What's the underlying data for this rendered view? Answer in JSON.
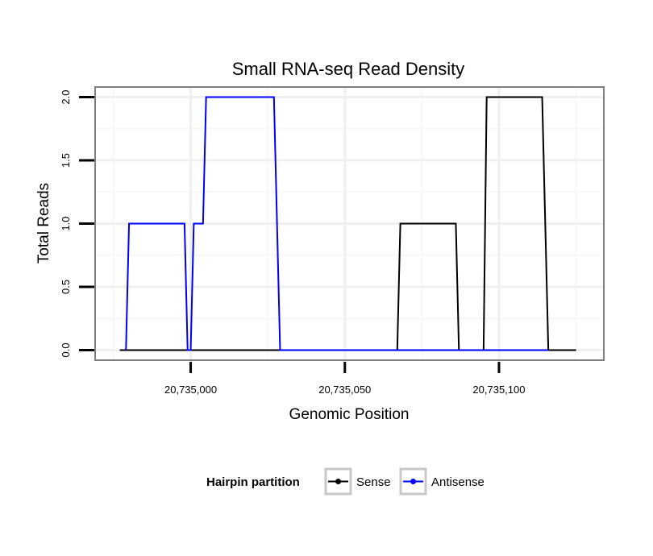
{
  "chart_data": {
    "type": "line",
    "title": "Small RNA-seq Read Density",
    "xlabel": "Genomic Position",
    "ylabel": "Total Reads",
    "xlim": [
      20734969,
      20735134
    ],
    "ylim": [
      -0.08,
      2.08
    ],
    "x_ticks": [
      20735000,
      20735050,
      20735100
    ],
    "x_tick_labels": [
      "20,735,000",
      "20,735,050",
      "20,735,100"
    ],
    "y_ticks": [
      0,
      0.5,
      1,
      1.5,
      2
    ],
    "y_tick_labels": [
      "0.0",
      "0.5",
      "1.0",
      "1.5",
      "2.0"
    ],
    "grid": true,
    "legend": {
      "title": "Hairpin partition",
      "placement": "bottom"
    },
    "series": [
      {
        "name": "Sense",
        "color": "#000000",
        "points": [
          [
            20734977,
            0
          ],
          [
            20735067,
            0
          ],
          [
            20735068,
            1
          ],
          [
            20735086,
            1
          ],
          [
            20735087,
            0
          ],
          [
            20735095,
            0
          ],
          [
            20735096,
            2
          ],
          [
            20735114,
            2
          ],
          [
            20735116,
            0
          ],
          [
            20735125,
            0
          ]
        ]
      },
      {
        "name": "Antisense",
        "color": "#0000ff",
        "points": [
          [
            20734979,
            0
          ],
          [
            20734980,
            1
          ],
          [
            20734998,
            1
          ],
          [
            20734999,
            0
          ],
          [
            20735000,
            0
          ],
          [
            20735001,
            1
          ],
          [
            20735004,
            1
          ],
          [
            20735005,
            2
          ],
          [
            20735027,
            2
          ],
          [
            20735029,
            0
          ],
          [
            20735067,
            0
          ],
          [
            20735087,
            0
          ],
          [
            20735095,
            0
          ],
          [
            20735116,
            0
          ]
        ]
      }
    ]
  }
}
